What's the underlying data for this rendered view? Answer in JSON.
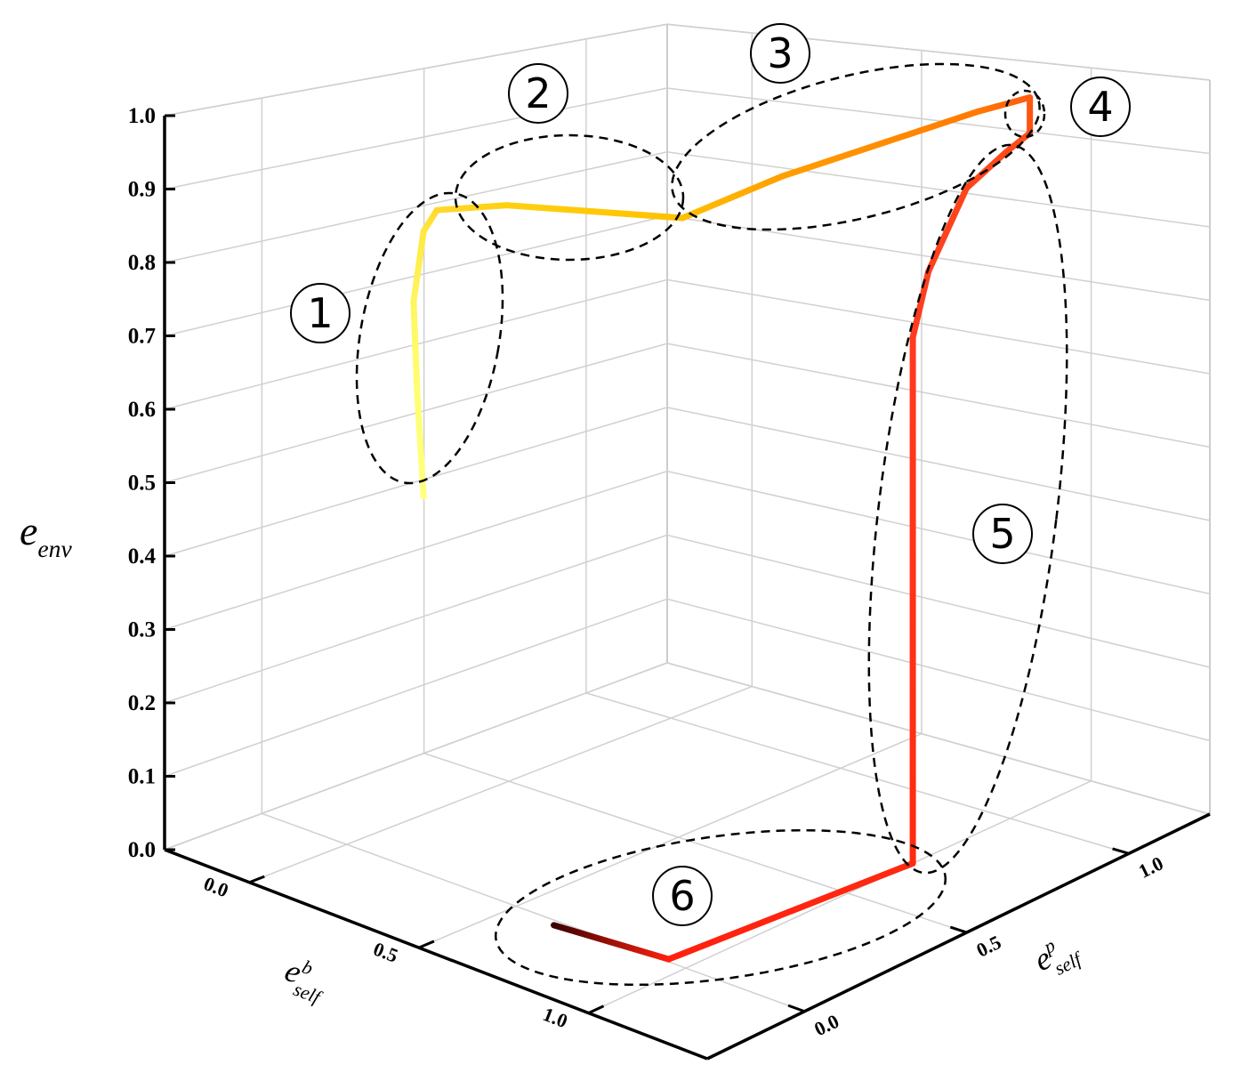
{
  "chart_data": {
    "type": "line3d",
    "xlabel": {
      "base": "e",
      "sup": "b",
      "sub": "self"
    },
    "ylabel": {
      "base": "e",
      "sup": "p",
      "sub": "self"
    },
    "zlabel": {
      "base": "e",
      "sub": "env"
    },
    "xlim": [
      -0.25,
      1.35
    ],
    "ylim": [
      -0.3,
      1.25
    ],
    "zlim": [
      0,
      1
    ],
    "xticks": [
      {
        "value": 0,
        "label": "0.0"
      },
      {
        "value": 0.5,
        "label": "0.5"
      },
      {
        "value": 1,
        "label": "1.0"
      }
    ],
    "yticks": [
      {
        "value": 0,
        "label": "0.0"
      },
      {
        "value": 0.5,
        "label": "0.5"
      },
      {
        "value": 1,
        "label": "1.0"
      }
    ],
    "zticks": [
      {
        "value": 0,
        "label": "0.0"
      },
      {
        "value": 0.1,
        "label": "0.1"
      },
      {
        "value": 0.2,
        "label": "0.2"
      },
      {
        "value": 0.3,
        "label": "0.3"
      },
      {
        "value": 0.4,
        "label": "0.4"
      },
      {
        "value": 0.5,
        "label": "0.5"
      },
      {
        "value": 0.6,
        "label": "0.6"
      },
      {
        "value": 0.7,
        "label": "0.7"
      },
      {
        "value": 0.8,
        "label": "0.8"
      },
      {
        "value": 0.9,
        "label": "0.9"
      },
      {
        "value": 1,
        "label": "1.0"
      }
    ],
    "grid": true,
    "series": [
      {
        "x": [
          0.16,
          0.15,
          0.14,
          0.16,
          0.18,
          0.29,
          0.56,
          0.74,
          0.98,
          1.02,
          1.02,
          0.99,
          0.91,
          0.96,
          1.0,
          1.0,
          0.94,
          0.63
        ],
        "y": [
          0.07,
          0.06,
          0.06,
          0.07,
          0.09,
          0.19,
          0.45,
          0.57,
          0.92,
          1.04,
          1.04,
          1.0,
          0.96,
          0.79,
          0.7,
          0.7,
          0.01,
          -0.02
        ],
        "z": [
          0.5,
          0.65,
          0.77,
          0.87,
          0.9,
          0.91,
          0.89,
          0.95,
          1.0,
          1.0,
          0.95,
          0.93,
          0.88,
          0.8,
          0.73,
          0.0,
          0.0,
          0.0
        ],
        "colors": [
          "#ffff80",
          "#ffff70",
          "#fff560",
          "#ffe840",
          "#ffd830",
          "#ffd010",
          "#ffc000",
          "#ff9f00",
          "#ff7a00",
          "#ff5a10",
          "#ff5010",
          "#ff4818",
          "#ff4518",
          "#ff4020",
          "#ff3a20",
          "#ff2a10",
          "#ff2010",
          "#3a0000"
        ]
      }
    ],
    "annotations": [
      {
        "label": "1"
      },
      {
        "label": "2"
      },
      {
        "label": "3"
      },
      {
        "label": "4"
      },
      {
        "label": "5"
      },
      {
        "label": "6"
      }
    ]
  }
}
